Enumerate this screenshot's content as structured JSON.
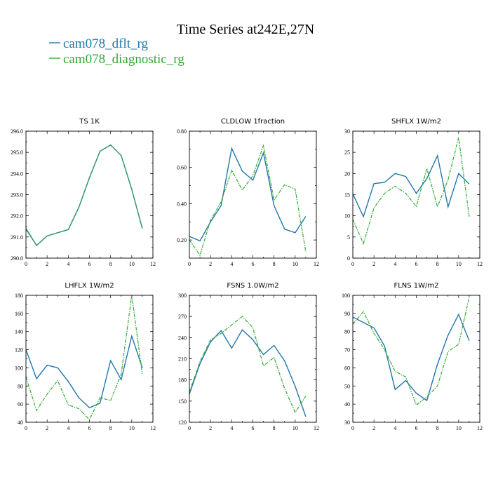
{
  "figure": {
    "title": "Time Series at242E,27N",
    "legend": [
      {
        "label": "cam078_dflt_rg",
        "color": "#2277aa"
      },
      {
        "label": "cam078_diagnostic_rg",
        "color": "#33aa33"
      }
    ]
  },
  "chart_data": [
    {
      "type": "line",
      "title": "TS   1K",
      "xlim": [
        0,
        12
      ],
      "ylim": [
        290.0,
        296.0
      ],
      "xticks": [
        0,
        2,
        4,
        6,
        8,
        10,
        12
      ],
      "yticks": [
        290.0,
        291.0,
        292.0,
        293.0,
        294.0,
        295.0,
        296.0
      ],
      "yticklabels": [
        "290.0",
        "291.0",
        "292.0",
        "293.0",
        "294.0",
        "295.0",
        "296.0"
      ],
      "x": [
        0,
        1,
        2,
        3,
        4,
        5,
        6,
        7,
        8,
        9,
        10,
        11
      ],
      "series": [
        {
          "name": "cam078_dflt_rg",
          "values": [
            291.4,
            290.6,
            291.05,
            291.2,
            291.35,
            292.4,
            293.8,
            295.05,
            295.35,
            294.85,
            293.25,
            291.4
          ]
        },
        {
          "name": "cam078_diagnostic_rg",
          "values": [
            291.35,
            290.6,
            291.05,
            291.2,
            291.35,
            292.4,
            293.8,
            295.05,
            295.35,
            294.85,
            293.25,
            291.4
          ]
        }
      ]
    },
    {
      "type": "line",
      "title": "CLDLOW   1fraction",
      "xlim": [
        0,
        12
      ],
      "ylim": [
        0.1,
        0.8
      ],
      "xticks": [
        0,
        2,
        4,
        6,
        8,
        10,
        12
      ],
      "yticks": [
        0.2,
        0.4,
        0.6,
        0.8
      ],
      "yticklabels": [
        "0.20",
        "0.40",
        "0.60",
        "0.80"
      ],
      "x": [
        0,
        1,
        2,
        3,
        4,
        5,
        6,
        7,
        8,
        9,
        10,
        11
      ],
      "series": [
        {
          "name": "cam078_dflt_rg",
          "values": [
            0.22,
            0.195,
            0.3,
            0.39,
            0.705,
            0.58,
            0.53,
            0.68,
            0.39,
            0.26,
            0.24,
            0.33
          ]
        },
        {
          "name": "cam078_diagnostic_rg",
          "values": [
            0.2,
            0.115,
            0.31,
            0.41,
            0.585,
            0.475,
            0.555,
            0.72,
            0.42,
            0.505,
            0.48,
            0.135
          ]
        }
      ]
    },
    {
      "type": "line",
      "title": "SHFLX   1W/m2",
      "xlim": [
        0,
        12
      ],
      "ylim": [
        0,
        30
      ],
      "xticks": [
        0,
        2,
        4,
        6,
        8,
        10,
        12
      ],
      "yticks": [
        0,
        5,
        10,
        15,
        20,
        25,
        30
      ],
      "yticklabels": [
        "0",
        "5",
        "10",
        "15",
        "20",
        "25",
        "30"
      ],
      "x": [
        0,
        1,
        2,
        3,
        4,
        5,
        6,
        7,
        8,
        9,
        10,
        11
      ],
      "series": [
        {
          "name": "cam078_dflt_rg",
          "values": [
            15.2,
            9.8,
            17.6,
            17.9,
            20.0,
            19.3,
            15.3,
            18.8,
            24.2,
            12.1,
            20.0,
            17.5
          ]
        },
        {
          "name": "cam078_diagnostic_rg",
          "values": [
            9.2,
            3.4,
            11.9,
            15.3,
            17.0,
            15.3,
            12.2,
            21.2,
            12.1,
            18.5,
            28.5,
            9.8
          ]
        }
      ]
    },
    {
      "type": "line",
      "title": "LHFLX   1W/m2",
      "xlim": [
        0,
        12
      ],
      "ylim": [
        40,
        180
      ],
      "xticks": [
        0,
        2,
        4,
        6,
        8,
        10,
        12
      ],
      "yticks": [
        40,
        60,
        80,
        100,
        120,
        140,
        160,
        180
      ],
      "yticklabels": [
        "40",
        "60",
        "80",
        "100",
        "120",
        "140",
        "160",
        "180"
      ],
      "x": [
        0,
        1,
        2,
        3,
        4,
        5,
        6,
        7,
        8,
        9,
        10,
        11
      ],
      "series": [
        {
          "name": "cam078_dflt_rg",
          "values": [
            120,
            88,
            103,
            100,
            85,
            67,
            56,
            61,
            108,
            87,
            135,
            100
          ]
        },
        {
          "name": "cam078_diagnostic_rg",
          "values": [
            90,
            53,
            71,
            86,
            59,
            55,
            43,
            67,
            64,
            93,
            180,
            93
          ]
        }
      ]
    },
    {
      "type": "line",
      "title": "FSNS   1.0W/m2",
      "xlim": [
        0,
        12
      ],
      "ylim": [
        120,
        300
      ],
      "xticks": [
        0,
        2,
        4,
        6,
        8,
        10,
        12
      ],
      "yticks": [
        120,
        150,
        180,
        210,
        240,
        270,
        300
      ],
      "yticklabels": [
        "120",
        "150",
        "180",
        "210",
        "240",
        "270",
        "300"
      ],
      "x": [
        0,
        1,
        2,
        3,
        4,
        5,
        6,
        7,
        8,
        9,
        10,
        11
      ],
      "series": [
        {
          "name": "cam078_dflt_rg",
          "values": [
            160,
            203,
            234,
            250,
            225,
            251,
            237,
            216,
            229,
            207,
            171,
            128
          ]
        },
        {
          "name": "cam078_diagnostic_rg",
          "values": [
            163,
            206,
            237,
            246,
            258,
            270,
            254,
            200,
            212,
            168,
            134,
            157
          ]
        }
      ]
    },
    {
      "type": "line",
      "title": "FLNS   1W/m2",
      "xlim": [
        0,
        12
      ],
      "ylim": [
        30,
        100
      ],
      "xticks": [
        0,
        2,
        4,
        6,
        8,
        10,
        12
      ],
      "yticks": [
        30,
        40,
        50,
        60,
        70,
        80,
        90,
        100
      ],
      "yticklabels": [
        "30",
        "40",
        "50",
        "60",
        "70",
        "80",
        "90",
        "100"
      ],
      "x": [
        0,
        1,
        2,
        3,
        4,
        5,
        6,
        7,
        8,
        9,
        10,
        11
      ],
      "series": [
        {
          "name": "cam078_dflt_rg",
          "values": [
            88,
            85,
            82,
            72,
            48,
            53,
            46,
            42,
            62,
            78,
            89.5,
            75
          ]
        },
        {
          "name": "cam078_diagnostic_rg",
          "values": [
            84,
            91,
            79,
            70,
            58,
            55,
            39.5,
            44,
            50,
            69,
            73,
            99
          ]
        }
      ]
    }
  ]
}
